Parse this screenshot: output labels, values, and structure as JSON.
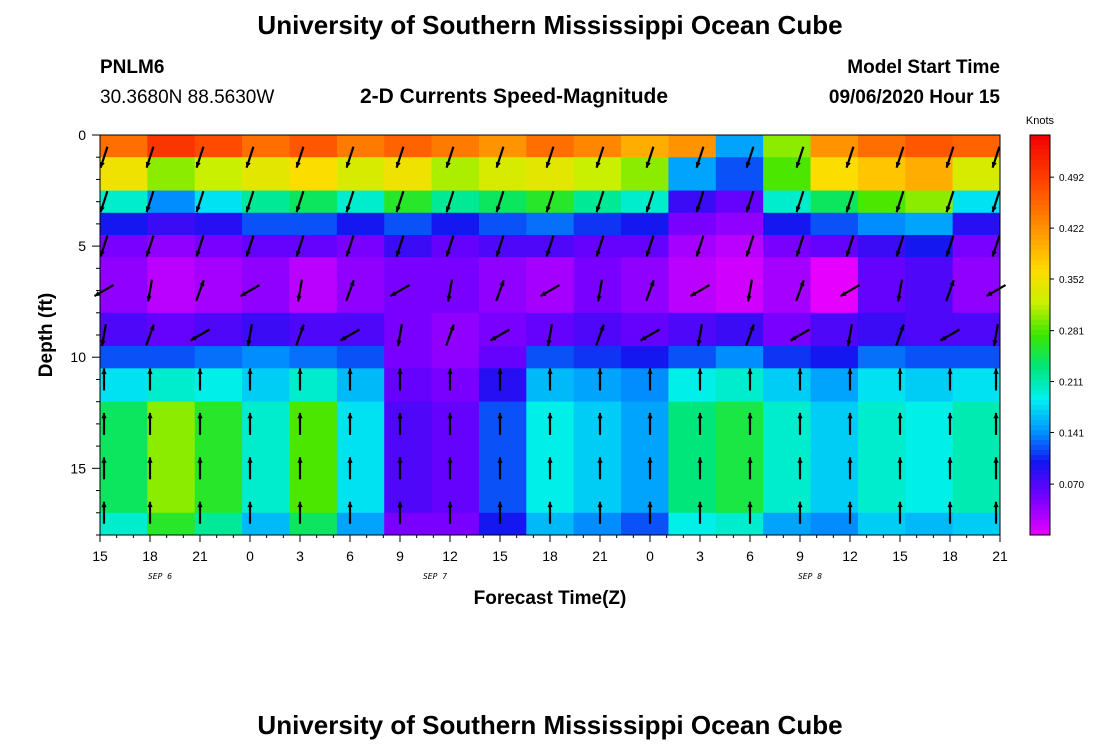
{
  "header": {
    "title": "University of Southern Mississippi Ocean Cube",
    "station_id": "PNLM6",
    "coordinates": "30.3680N 88.5630W",
    "model_start_label": "Model Start Time",
    "model_start_value": "09/06/2020 Hour 15"
  },
  "footer": {
    "title": "University of Southern Mississippi Ocean Cube"
  },
  "chart_data": {
    "type": "heatmap",
    "title": "2-D Currents Speed-Magnitude",
    "xlabel": "Forecast Time(Z)",
    "ylabel": "Depth (ft)",
    "x_range_hours": [
      0,
      54
    ],
    "y_range_ft": [
      0,
      18
    ],
    "x_ticks": [
      "15",
      "18",
      "21",
      "0",
      "3",
      "6",
      "9",
      "12",
      "15",
      "18",
      "21",
      "0",
      "3",
      "6",
      "9",
      "12",
      "15",
      "18",
      "21"
    ],
    "y_ticks": [
      "0",
      "5",
      "10",
      "15"
    ],
    "y_tick_values": [
      0,
      5,
      10,
      15
    ],
    "date_labels": [
      {
        "text": "SEP 6",
        "hour": 4.5
      },
      {
        "text": "SEP 7",
        "hour": 21
      },
      {
        "text": "SEP 8",
        "hour": 43.5
      }
    ],
    "colorbar": {
      "label": "Knots",
      "range": [
        0,
        0.55
      ],
      "ticks": [
        "0.492",
        "0.422",
        "0.352",
        "0.281",
        "0.211",
        "0.141",
        "0.070"
      ],
      "tick_values": [
        0.492,
        0.422,
        0.352,
        0.281,
        0.211,
        0.141,
        0.07
      ]
    },
    "depth_bands": [
      {
        "top": 0,
        "bottom": 1,
        "values": [
          0.45,
          0.5,
          0.48,
          0.45,
          0.47,
          0.44,
          0.46,
          0.44,
          0.42,
          0.45,
          0.43,
          0.4,
          0.42,
          0.15,
          0.3,
          0.42,
          0.45,
          0.47,
          0.46
        ]
      },
      {
        "top": 1,
        "bottom": 2.5,
        "values": [
          0.35,
          0.3,
          0.32,
          0.34,
          0.36,
          0.33,
          0.35,
          0.31,
          0.33,
          0.34,
          0.32,
          0.3,
          0.15,
          0.12,
          0.28,
          0.36,
          0.38,
          0.4,
          0.33
        ]
      },
      {
        "top": 2.5,
        "bottom": 3.5,
        "values": [
          0.2,
          0.14,
          0.18,
          0.22,
          0.24,
          0.2,
          0.26,
          0.22,
          0.24,
          0.26,
          0.22,
          0.2,
          0.08,
          0.06,
          0.2,
          0.24,
          0.28,
          0.3,
          0.18
        ]
      },
      {
        "top": 3.5,
        "bottom": 4.5,
        "values": [
          0.1,
          0.08,
          0.09,
          0.12,
          0.12,
          0.1,
          0.12,
          0.1,
          0.12,
          0.13,
          0.11,
          0.1,
          0.05,
          0.04,
          0.1,
          0.12,
          0.14,
          0.15,
          0.09
        ]
      },
      {
        "top": 4.5,
        "bottom": 5.5,
        "values": [
          0.05,
          0.04,
          0.05,
          0.06,
          0.06,
          0.05,
          0.08,
          0.06,
          0.07,
          0.07,
          0.06,
          0.06,
          0.03,
          0.02,
          0.05,
          0.06,
          0.08,
          0.1,
          0.05
        ]
      },
      {
        "top": 5.5,
        "bottom": 8,
        "values": [
          0.04,
          0.02,
          0.03,
          0.04,
          0.02,
          0.04,
          0.05,
          0.05,
          0.04,
          0.03,
          0.05,
          0.04,
          0.02,
          0.01,
          0.03,
          0.0,
          0.06,
          0.07,
          0.04
        ]
      },
      {
        "top": 8,
        "bottom": 9.5,
        "values": [
          0.07,
          0.06,
          0.07,
          0.08,
          0.07,
          0.07,
          0.05,
          0.04,
          0.05,
          0.06,
          0.07,
          0.06,
          0.07,
          0.08,
          0.05,
          0.07,
          0.08,
          0.07,
          0.07
        ]
      },
      {
        "top": 9.5,
        "bottom": 10.5,
        "values": [
          0.12,
          0.12,
          0.13,
          0.14,
          0.13,
          0.12,
          0.05,
          0.04,
          0.06,
          0.12,
          0.11,
          0.1,
          0.12,
          0.14,
          0.11,
          0.1,
          0.13,
          0.12,
          0.12
        ]
      },
      {
        "top": 10.5,
        "bottom": 12,
        "values": [
          0.18,
          0.2,
          0.19,
          0.17,
          0.2,
          0.16,
          0.06,
          0.05,
          0.09,
          0.16,
          0.15,
          0.14,
          0.19,
          0.2,
          0.17,
          0.15,
          0.18,
          0.17,
          0.18
        ]
      },
      {
        "top": 12,
        "bottom": 17,
        "values": [
          0.24,
          0.3,
          0.26,
          0.2,
          0.28,
          0.18,
          0.07,
          0.06,
          0.12,
          0.19,
          0.17,
          0.15,
          0.23,
          0.25,
          0.2,
          0.17,
          0.2,
          0.19,
          0.21
        ]
      },
      {
        "top": 17,
        "bottom": 18,
        "values": [
          0.2,
          0.26,
          0.22,
          0.16,
          0.24,
          0.15,
          0.05,
          0.05,
          0.1,
          0.16,
          0.14,
          0.12,
          0.19,
          0.2,
          0.15,
          0.14,
          0.17,
          0.16,
          0.17
        ]
      }
    ],
    "vectors": {
      "hours": [
        0,
        3,
        6,
        9,
        12,
        15,
        18,
        21,
        24,
        27,
        30,
        33,
        36,
        39,
        42,
        45,
        48,
        51,
        54
      ],
      "depth_rows": [
        {
          "depth": 1,
          "dir": "down-left"
        },
        {
          "depth": 3,
          "dir": "down-left"
        },
        {
          "depth": 5,
          "dir": "down-left"
        },
        {
          "depth": 7,
          "dir": "mixed"
        },
        {
          "depth": 9,
          "dir": "mixed"
        },
        {
          "depth": 11,
          "dir": "up"
        },
        {
          "depth": 13,
          "dir": "up"
        },
        {
          "depth": 15,
          "dir": "up"
        },
        {
          "depth": 17,
          "dir": "up"
        }
      ]
    }
  }
}
